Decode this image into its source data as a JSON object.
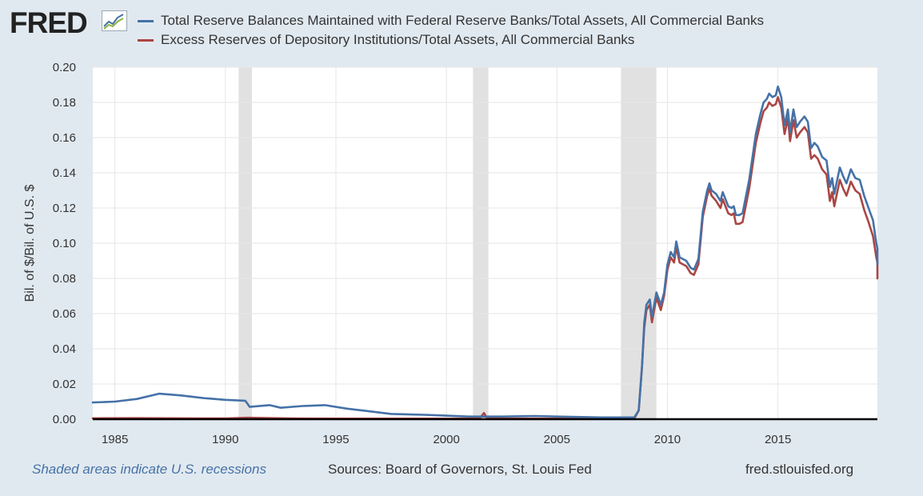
{
  "header": {
    "logo_text": "FRED",
    "logo_icon": "line-chart-icon",
    "series1_label": "Total Reserve Balances Maintained with Federal Reserve Banks/Total Assets, All Commercial Banks",
    "series2_label": "Excess Reserves of Depository Institutions/Total Assets, All Commercial Banks"
  },
  "footer": {
    "recession_note": "Shaded areas indicate U.S. recessions",
    "sources": "Sources: Board of Governors, St. Louis Fed",
    "site": "fred.stlouisfed.org"
  },
  "chart_data": {
    "type": "line",
    "title": "",
    "xlabel": "",
    "ylabel": "Bil. of $/Bil. of U.S. $",
    "xlim": [
      1984.0,
      2019.5
    ],
    "ylim": [
      0,
      0.2
    ],
    "yticks": [
      "0.00",
      "0.02",
      "0.04",
      "0.06",
      "0.08",
      "0.10",
      "0.12",
      "0.14",
      "0.16",
      "0.18",
      "0.20"
    ],
    "xticks": [
      "1985",
      "1990",
      "1995",
      "2000",
      "2005",
      "2010",
      "2015"
    ],
    "grid": true,
    "legend": "top",
    "recessions": [
      [
        1990.6,
        1991.2
      ],
      [
        2001.2,
        2001.9
      ],
      [
        2007.9,
        2009.5
      ]
    ],
    "series": [
      {
        "name": "Total Reserve Balances Maintained with Federal Reserve Banks/Total Assets, All Commercial Banks",
        "color": "#4572a7",
        "points": [
          [
            1984.0,
            0.0095
          ],
          [
            1985.0,
            0.01
          ],
          [
            1986.0,
            0.0115
          ],
          [
            1987.0,
            0.0145
          ],
          [
            1988.0,
            0.0135
          ],
          [
            1989.0,
            0.012
          ],
          [
            1990.0,
            0.011
          ],
          [
            1990.9,
            0.0105
          ],
          [
            1991.1,
            0.007
          ],
          [
            1992.0,
            0.008
          ],
          [
            1992.5,
            0.0065
          ],
          [
            1993.5,
            0.0075
          ],
          [
            1994.5,
            0.008
          ],
          [
            1995.5,
            0.006
          ],
          [
            1996.5,
            0.0045
          ],
          [
            1997.5,
            0.003
          ],
          [
            1999.0,
            0.0025
          ],
          [
            2000.0,
            0.002
          ],
          [
            2001.0,
            0.0015
          ],
          [
            2001.7,
            0.0015
          ],
          [
            2002.5,
            0.0015
          ],
          [
            2004.0,
            0.0018
          ],
          [
            2005.0,
            0.0015
          ],
          [
            2007.0,
            0.001
          ],
          [
            2008.5,
            0.001
          ],
          [
            2008.7,
            0.005
          ],
          [
            2008.85,
            0.03
          ],
          [
            2008.95,
            0.055
          ],
          [
            2009.05,
            0.065
          ],
          [
            2009.2,
            0.068
          ],
          [
            2009.3,
            0.058
          ],
          [
            2009.5,
            0.072
          ],
          [
            2009.7,
            0.065
          ],
          [
            2009.85,
            0.072
          ],
          [
            2010.0,
            0.088
          ],
          [
            2010.15,
            0.095
          ],
          [
            2010.3,
            0.092
          ],
          [
            2010.4,
            0.101
          ],
          [
            2010.55,
            0.092
          ],
          [
            2010.85,
            0.09
          ],
          [
            2011.05,
            0.086
          ],
          [
            2011.2,
            0.085
          ],
          [
            2011.4,
            0.091
          ],
          [
            2011.6,
            0.118
          ],
          [
            2011.8,
            0.13
          ],
          [
            2011.9,
            0.134
          ],
          [
            2012.0,
            0.13
          ],
          [
            2012.2,
            0.128
          ],
          [
            2012.4,
            0.124
          ],
          [
            2012.5,
            0.129
          ],
          [
            2012.75,
            0.121
          ],
          [
            2012.9,
            0.12
          ],
          [
            2013.0,
            0.121
          ],
          [
            2013.1,
            0.116
          ],
          [
            2013.25,
            0.116
          ],
          [
            2013.4,
            0.117
          ],
          [
            2013.7,
            0.136
          ],
          [
            2014.0,
            0.162
          ],
          [
            2014.2,
            0.173
          ],
          [
            2014.35,
            0.18
          ],
          [
            2014.5,
            0.182
          ],
          [
            2014.6,
            0.185
          ],
          [
            2014.75,
            0.183
          ],
          [
            2014.9,
            0.184
          ],
          [
            2015.0,
            0.189
          ],
          [
            2015.15,
            0.183
          ],
          [
            2015.3,
            0.167
          ],
          [
            2015.45,
            0.176
          ],
          [
            2015.55,
            0.163
          ],
          [
            2015.7,
            0.176
          ],
          [
            2015.85,
            0.166
          ],
          [
            2016.0,
            0.169
          ],
          [
            2016.2,
            0.172
          ],
          [
            2016.35,
            0.169
          ],
          [
            2016.5,
            0.154
          ],
          [
            2016.65,
            0.157
          ],
          [
            2016.8,
            0.155
          ],
          [
            2017.0,
            0.149
          ],
          [
            2017.2,
            0.147
          ],
          [
            2017.35,
            0.132
          ],
          [
            2017.45,
            0.137
          ],
          [
            2017.55,
            0.128
          ],
          [
            2017.8,
            0.143
          ],
          [
            2017.95,
            0.138
          ],
          [
            2018.1,
            0.134
          ],
          [
            2018.3,
            0.142
          ],
          [
            2018.5,
            0.137
          ],
          [
            2018.7,
            0.136
          ],
          [
            2018.9,
            0.127
          ],
          [
            2019.1,
            0.12
          ],
          [
            2019.3,
            0.113
          ],
          [
            2019.45,
            0.1
          ],
          [
            2019.6,
            0.097
          ],
          [
            2019.75,
            0.097
          ],
          [
            2019.85,
            0.09
          ],
          [
            2019.95,
            0.089
          ],
          [
            2020.0,
            0.088
          ]
        ]
      },
      {
        "name": "Excess Reserves of Depository Institutions/Total Assets, All Commercial Banks",
        "color": "#aa4643",
        "points": [
          [
            1984.0,
            0.0005
          ],
          [
            1986.0,
            0.0006
          ],
          [
            1988.0,
            0.0005
          ],
          [
            1990.0,
            0.0004
          ],
          [
            1991.0,
            0.0008
          ],
          [
            1993.0,
            0.0004
          ],
          [
            1996.0,
            0.0003
          ],
          [
            2000.0,
            0.0003
          ],
          [
            2001.5,
            0.0004
          ],
          [
            2001.7,
            0.0035
          ],
          [
            2001.85,
            0.0004
          ],
          [
            2005.0,
            0.0003
          ],
          [
            2008.5,
            0.0003
          ],
          [
            2008.7,
            0.005
          ],
          [
            2008.85,
            0.03
          ],
          [
            2008.95,
            0.052
          ],
          [
            2009.05,
            0.062
          ],
          [
            2009.2,
            0.065
          ],
          [
            2009.3,
            0.055
          ],
          [
            2009.5,
            0.069
          ],
          [
            2009.7,
            0.062
          ],
          [
            2009.85,
            0.07
          ],
          [
            2010.0,
            0.085
          ],
          [
            2010.15,
            0.092
          ],
          [
            2010.3,
            0.089
          ],
          [
            2010.4,
            0.098
          ],
          [
            2010.55,
            0.089
          ],
          [
            2010.85,
            0.087
          ],
          [
            2011.05,
            0.083
          ],
          [
            2011.2,
            0.082
          ],
          [
            2011.4,
            0.088
          ],
          [
            2011.6,
            0.115
          ],
          [
            2011.8,
            0.127
          ],
          [
            2011.9,
            0.131
          ],
          [
            2012.0,
            0.127
          ],
          [
            2012.2,
            0.124
          ],
          [
            2012.4,
            0.12
          ],
          [
            2012.5,
            0.125
          ],
          [
            2012.75,
            0.117
          ],
          [
            2012.9,
            0.116
          ],
          [
            2013.0,
            0.117
          ],
          [
            2013.1,
            0.111
          ],
          [
            2013.25,
            0.111
          ],
          [
            2013.4,
            0.112
          ],
          [
            2013.7,
            0.131
          ],
          [
            2014.0,
            0.157
          ],
          [
            2014.2,
            0.168
          ],
          [
            2014.35,
            0.175
          ],
          [
            2014.5,
            0.177
          ],
          [
            2014.6,
            0.18
          ],
          [
            2014.75,
            0.178
          ],
          [
            2014.9,
            0.179
          ],
          [
            2015.0,
            0.183
          ],
          [
            2015.15,
            0.177
          ],
          [
            2015.3,
            0.162
          ],
          [
            2015.45,
            0.171
          ],
          [
            2015.55,
            0.158
          ],
          [
            2015.7,
            0.17
          ],
          [
            2015.85,
            0.16
          ],
          [
            2016.0,
            0.163
          ],
          [
            2016.2,
            0.166
          ],
          [
            2016.35,
            0.163
          ],
          [
            2016.5,
            0.148
          ],
          [
            2016.65,
            0.15
          ],
          [
            2016.8,
            0.148
          ],
          [
            2017.0,
            0.142
          ],
          [
            2017.2,
            0.139
          ],
          [
            2017.35,
            0.124
          ],
          [
            2017.45,
            0.129
          ],
          [
            2017.55,
            0.121
          ],
          [
            2017.8,
            0.136
          ],
          [
            2017.95,
            0.131
          ],
          [
            2018.1,
            0.127
          ],
          [
            2018.3,
            0.135
          ],
          [
            2018.5,
            0.13
          ],
          [
            2018.7,
            0.128
          ],
          [
            2018.9,
            0.119
          ],
          [
            2019.1,
            0.112
          ],
          [
            2019.3,
            0.104
          ],
          [
            2019.45,
            0.092
          ],
          [
            2019.6,
            0.089
          ],
          [
            2019.75,
            0.09
          ],
          [
            2019.85,
            0.082
          ],
          [
            2019.95,
            0.08
          ],
          [
            2020.0,
            0.08
          ]
        ]
      }
    ]
  }
}
